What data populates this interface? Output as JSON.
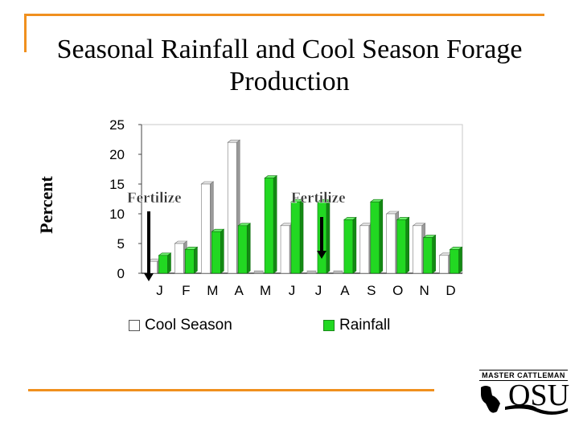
{
  "chart_data": {
    "type": "bar",
    "title": "Seasonal Rainfall and Cool Season Forage Production",
    "xlabel": "",
    "ylabel": "Percent",
    "categories": [
      "J",
      "F",
      "M",
      "A",
      "M",
      "J",
      "J",
      "A",
      "S",
      "O",
      "N",
      "D"
    ],
    "series": [
      {
        "name": "Cool Season",
        "color": "#ffffff",
        "values": [
          2,
          5,
          15,
          22,
          0,
          8,
          0,
          0,
          8,
          10,
          8,
          3
        ]
      },
      {
        "name": "Rainfall",
        "color": "#22d822",
        "values": [
          3,
          4,
          7,
          8,
          16,
          12,
          12,
          9,
          12,
          9,
          6,
          4
        ]
      }
    ],
    "ylim": [
      0,
      25
    ],
    "yticks": [
      0,
      5,
      10,
      15,
      20,
      25
    ],
    "annotations": [
      {
        "text": "Fertilize",
        "month": "J"
      },
      {
        "text": "Fertilize",
        "month": "J"
      }
    ],
    "legend": "bottom"
  },
  "logo": {
    "banner": "MASTER CATTLEMAN",
    "text": "OSU"
  },
  "colors": {
    "accent": "#f0901e",
    "rainfall": "#22d822",
    "cool_season": "#ffffff"
  }
}
